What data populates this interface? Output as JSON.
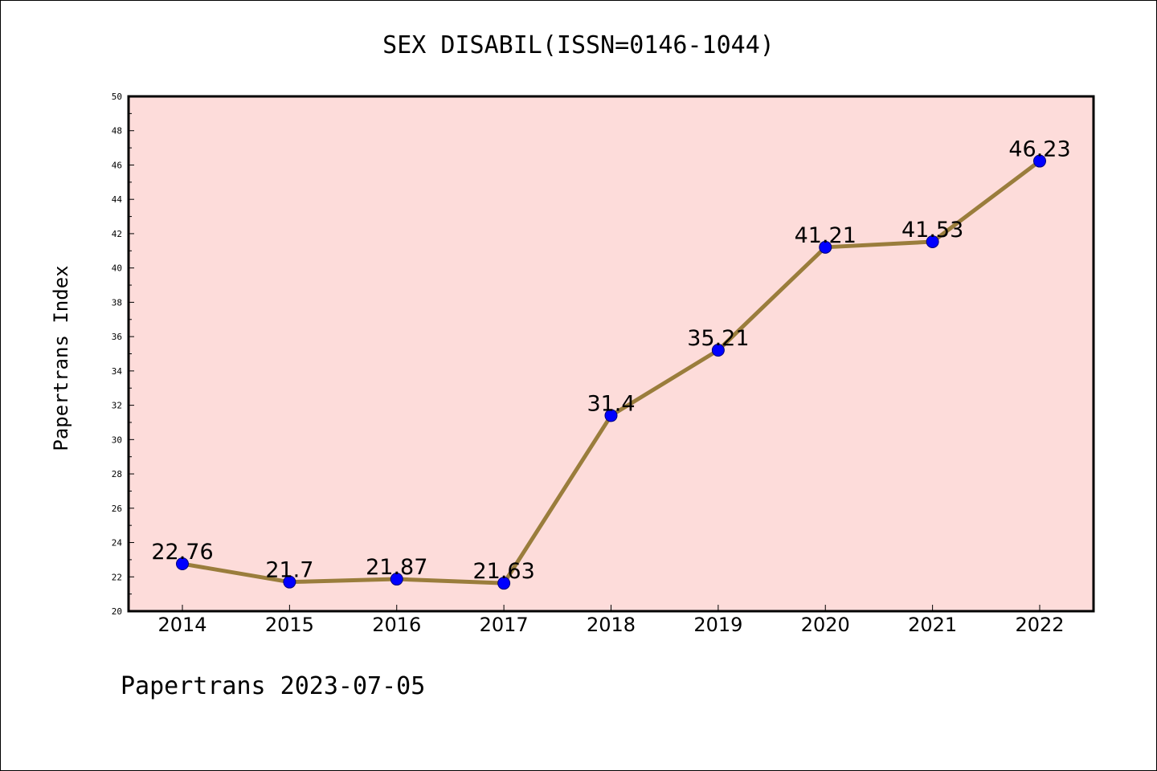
{
  "chart_data": {
    "type": "line",
    "title": "SEX DISABIL(ISSN=0146-1044)",
    "xlabel": "",
    "ylabel": "Papertrans Index",
    "categories": [
      "2014",
      "2015",
      "2016",
      "2017",
      "2018",
      "2019",
      "2020",
      "2021",
      "2022"
    ],
    "series": [
      {
        "values": [
          22.76,
          21.7,
          21.87,
          21.63,
          31.4,
          35.21,
          41.21,
          41.53,
          46.23
        ],
        "labels": [
          "22.76",
          "21.7",
          "21.87",
          "21.63",
          "31.4",
          "35.21",
          "41.21",
          "41.53",
          "46.23"
        ]
      }
    ],
    "ylim": [
      20,
      50
    ],
    "yticks": [
      "20",
      "22",
      "24",
      "26",
      "28",
      "30",
      "32",
      "34",
      "36",
      "38",
      "40",
      "42",
      "44",
      "46",
      "48",
      "50"
    ],
    "grid": false,
    "legend": "none",
    "colors": {
      "plot_background": "#fddcda",
      "line": "#9a7d3c",
      "marker": "#0000ff",
      "marker_edge": "#00007a"
    }
  },
  "footer": "Papertrans 2023-07-05"
}
